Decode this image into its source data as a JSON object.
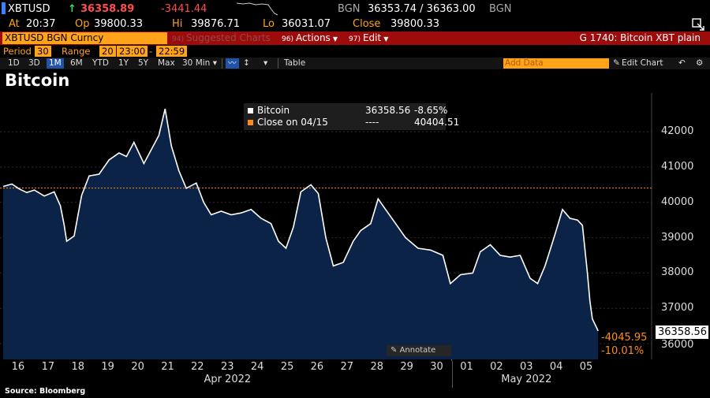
{
  "ticker": {
    "symbol": "XBTUSD",
    "direction_arrow": "↑",
    "last": "36358.89",
    "change": "-3441.44",
    "source1": "BGN",
    "bid_ask": "36353.74 / 36363.00",
    "source2": "BGN"
  },
  "stats": {
    "at_label": "At",
    "at_value": "20:37",
    "op_label": "Op",
    "op_value": "39800.33",
    "hi_label": "Hi",
    "hi_value": "39876.71",
    "lo_label": "Lo",
    "lo_value": "36031.07",
    "close_label": "Close",
    "close_value": "39800.33"
  },
  "function_bar": {
    "security": "XBTUSD BGN Curncy",
    "suggested_num": "94)",
    "suggested": "Suggested Charts",
    "actions_num": "96)",
    "actions": "Actions",
    "edit_num": "97)",
    "edit": "Edit",
    "right_label": "G 1740: Bitcoin XBT plain"
  },
  "period_bar": {
    "period_label": "Period",
    "period_value": "30",
    "range_label": "Range",
    "range_value": "20",
    "start_time": "23:00",
    "dash": "-",
    "end_time": "22:59"
  },
  "toolbar": {
    "ranges": [
      "1D",
      "3D",
      "1M",
      "6M",
      "YTD",
      "1Y",
      "5Y",
      "Max"
    ],
    "selected_range": "1M",
    "interval": "30 Min",
    "interval_caret": "▾",
    "chart_icon_label": "〰",
    "bar_icon_label": "↕",
    "more_caret": "▾",
    "table": "Table",
    "add_data_placeholder": "Add Data",
    "edit_chart": "Edit Chart"
  },
  "chart_title": "Bitcoin",
  "legend": [
    {
      "name": "Bitcoin",
      "value": "36358.56",
      "change": "-8.65%",
      "color": "#ffffff"
    },
    {
      "name": "Close on 04/15",
      "value": "----",
      "change": "40404.51",
      "color": "#ff8c1a"
    }
  ],
  "badges": {
    "last_price": "36358.56",
    "change_abs": "-4045.95",
    "change_pct": "-10.01%"
  },
  "annotate": "Annotate",
  "source_note": "Source: Bloomberg",
  "colors": {
    "area_fill": "#0b2347",
    "line": "#ffffff",
    "reference_line": "#ff8c1a",
    "function_bar": "#9e0b0b",
    "accent_orange": "#ffa31a"
  },
  "chart_data": {
    "type": "area",
    "title": "Bitcoin",
    "xlabel": "",
    "ylabel": "",
    "ylim": [
      35800,
      42900
    ],
    "yticks": [
      36000,
      37000,
      38000,
      39000,
      40000,
      41000,
      42000
    ],
    "x_ticks": [
      "16",
      "17",
      "18",
      "19",
      "20",
      "21",
      "22",
      "23",
      "24",
      "25",
      "26",
      "27",
      "28",
      "29",
      "30",
      "01",
      "02",
      "03",
      "04",
      "05"
    ],
    "months": [
      "Apr 2022",
      "May 2022"
    ],
    "reference_line": {
      "name": "Close on 04/15",
      "value": 40404.51
    },
    "series": [
      {
        "name": "Bitcoin",
        "points": [
          [
            "2022-04-15 23:00",
            40450
          ],
          [
            "2022-04-16 06:00",
            40520
          ],
          [
            "2022-04-16 12:00",
            40380
          ],
          [
            "2022-04-16 18:00",
            40280
          ],
          [
            "2022-04-17 00:00",
            40350
          ],
          [
            "2022-04-17 08:00",
            40180
          ],
          [
            "2022-04-17 16:00",
            40300
          ],
          [
            "2022-04-17 21:00",
            39900
          ],
          [
            "2022-04-18 00:00",
            39350
          ],
          [
            "2022-04-18 02:00",
            38900
          ],
          [
            "2022-04-18 08:00",
            39050
          ],
          [
            "2022-04-18 14:00",
            40200
          ],
          [
            "2022-04-18 20:00",
            40750
          ],
          [
            "2022-04-19 04:00",
            40800
          ],
          [
            "2022-04-19 12:00",
            41200
          ],
          [
            "2022-04-19 20:00",
            41400
          ],
          [
            "2022-04-20 02:00",
            41300
          ],
          [
            "2022-04-20 08:00",
            41700
          ],
          [
            "2022-04-20 16:00",
            41100
          ],
          [
            "2022-04-20 22:00",
            41500
          ],
          [
            "2022-04-21 04:00",
            41900
          ],
          [
            "2022-04-21 09:00",
            42650
          ],
          [
            "2022-04-21 14:00",
            41600
          ],
          [
            "2022-04-21 20:00",
            40900
          ],
          [
            "2022-04-22 02:00",
            40400
          ],
          [
            "2022-04-22 10:00",
            40550
          ],
          [
            "2022-04-22 16:00",
            40000
          ],
          [
            "2022-04-22 22:00",
            39650
          ],
          [
            "2022-04-23 06:00",
            39750
          ],
          [
            "2022-04-23 14:00",
            39650
          ],
          [
            "2022-04-23 22:00",
            39700
          ],
          [
            "2022-04-24 06:00",
            39800
          ],
          [
            "2022-04-24 14:00",
            39550
          ],
          [
            "2022-04-24 22:00",
            39400
          ],
          [
            "2022-04-25 04:00",
            38900
          ],
          [
            "2022-04-25 10:00",
            38700
          ],
          [
            "2022-04-25 16:00",
            39300
          ],
          [
            "2022-04-25 22:00",
            40300
          ],
          [
            "2022-04-26 06:00",
            40500
          ],
          [
            "2022-04-26 12:00",
            40250
          ],
          [
            "2022-04-26 18:00",
            39000
          ],
          [
            "2022-04-27 00:00",
            38200
          ],
          [
            "2022-04-27 08:00",
            38300
          ],
          [
            "2022-04-27 16:00",
            38900
          ],
          [
            "2022-04-27 22:00",
            39200
          ],
          [
            "2022-04-28 06:00",
            39400
          ],
          [
            "2022-04-28 12:00",
            40100
          ],
          [
            "2022-04-28 18:00",
            39800
          ],
          [
            "2022-04-29 00:00",
            39500
          ],
          [
            "2022-04-29 10:00",
            39000
          ],
          [
            "2022-04-29 20:00",
            38700
          ],
          [
            "2022-04-30 06:00",
            38650
          ],
          [
            "2022-04-30 16:00",
            38500
          ],
          [
            "2022-04-30 22:00",
            37700
          ],
          [
            "2022-05-01 06:00",
            37950
          ],
          [
            "2022-05-01 16:00",
            38000
          ],
          [
            "2022-05-01 22:00",
            38600
          ],
          [
            "2022-05-02 06:00",
            38800
          ],
          [
            "2022-05-02 14:00",
            38500
          ],
          [
            "2022-05-02 22:00",
            38450
          ],
          [
            "2022-05-03 06:00",
            38500
          ],
          [
            "2022-05-03 14:00",
            37850
          ],
          [
            "2022-05-03 20:00",
            37700
          ],
          [
            "2022-05-04 02:00",
            38200
          ],
          [
            "2022-05-04 10:00",
            39100
          ],
          [
            "2022-05-04 16:00",
            39800
          ],
          [
            "2022-05-04 22:00",
            39550
          ],
          [
            "2022-05-05 04:00",
            39500
          ],
          [
            "2022-05-05 08:00",
            39350
          ],
          [
            "2022-05-05 12:00",
            38000
          ],
          [
            "2022-05-05 14:00",
            37200
          ],
          [
            "2022-05-05 16:00",
            36700
          ],
          [
            "2022-05-05 20:37",
            36360
          ]
        ]
      }
    ]
  }
}
